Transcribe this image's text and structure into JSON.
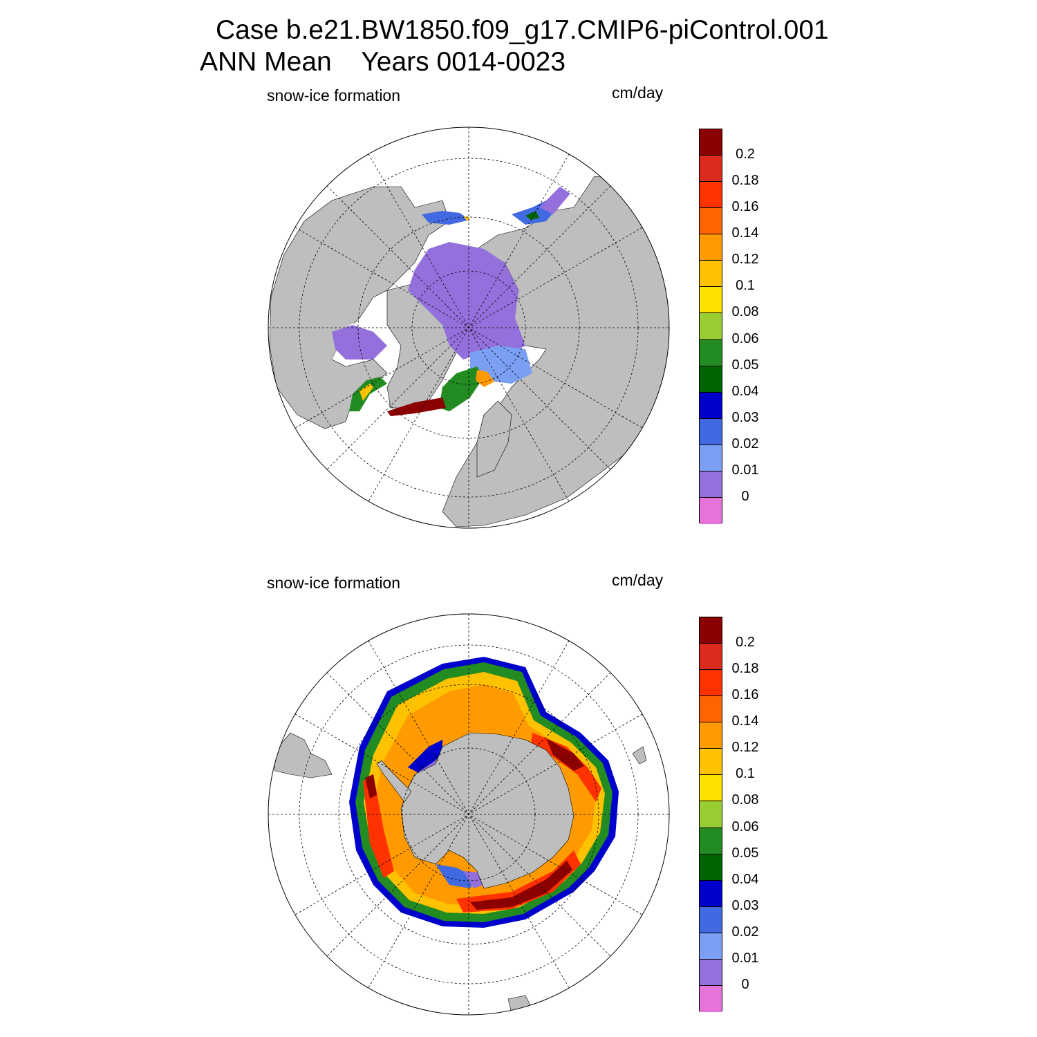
{
  "header": {
    "line1": "Case b.e21.BW1850.f09_g17.CMIP6-piControl.001",
    "line2": "ANN Mean    Years 0014-0023"
  },
  "colors": {
    "land": "#bebebe",
    "ocean": "#ffffff",
    "scale": [
      "#e573d9",
      "#9370db",
      "#7b9ff2",
      "#4169e1",
      "#0000cd",
      "#006400",
      "#228b22",
      "#9acd32",
      "#ffe100",
      "#ffc200",
      "#ff9a00",
      "#ff6400",
      "#ff3200",
      "#dc2b1c",
      "#8b0000"
    ]
  },
  "legend": {
    "ticks": [
      "0",
      "0.01",
      "0.02",
      "0.03",
      "0.04",
      "0.05",
      "0.06",
      "0.08",
      "0.1",
      "0.12",
      "0.14",
      "0.16",
      "0.18",
      "0.2"
    ]
  },
  "panels": [
    {
      "id": "north",
      "label": "snow-ice formation",
      "units": "cm/day"
    },
    {
      "id": "south",
      "label": "snow-ice formation",
      "units": "cm/day"
    }
  ]
}
